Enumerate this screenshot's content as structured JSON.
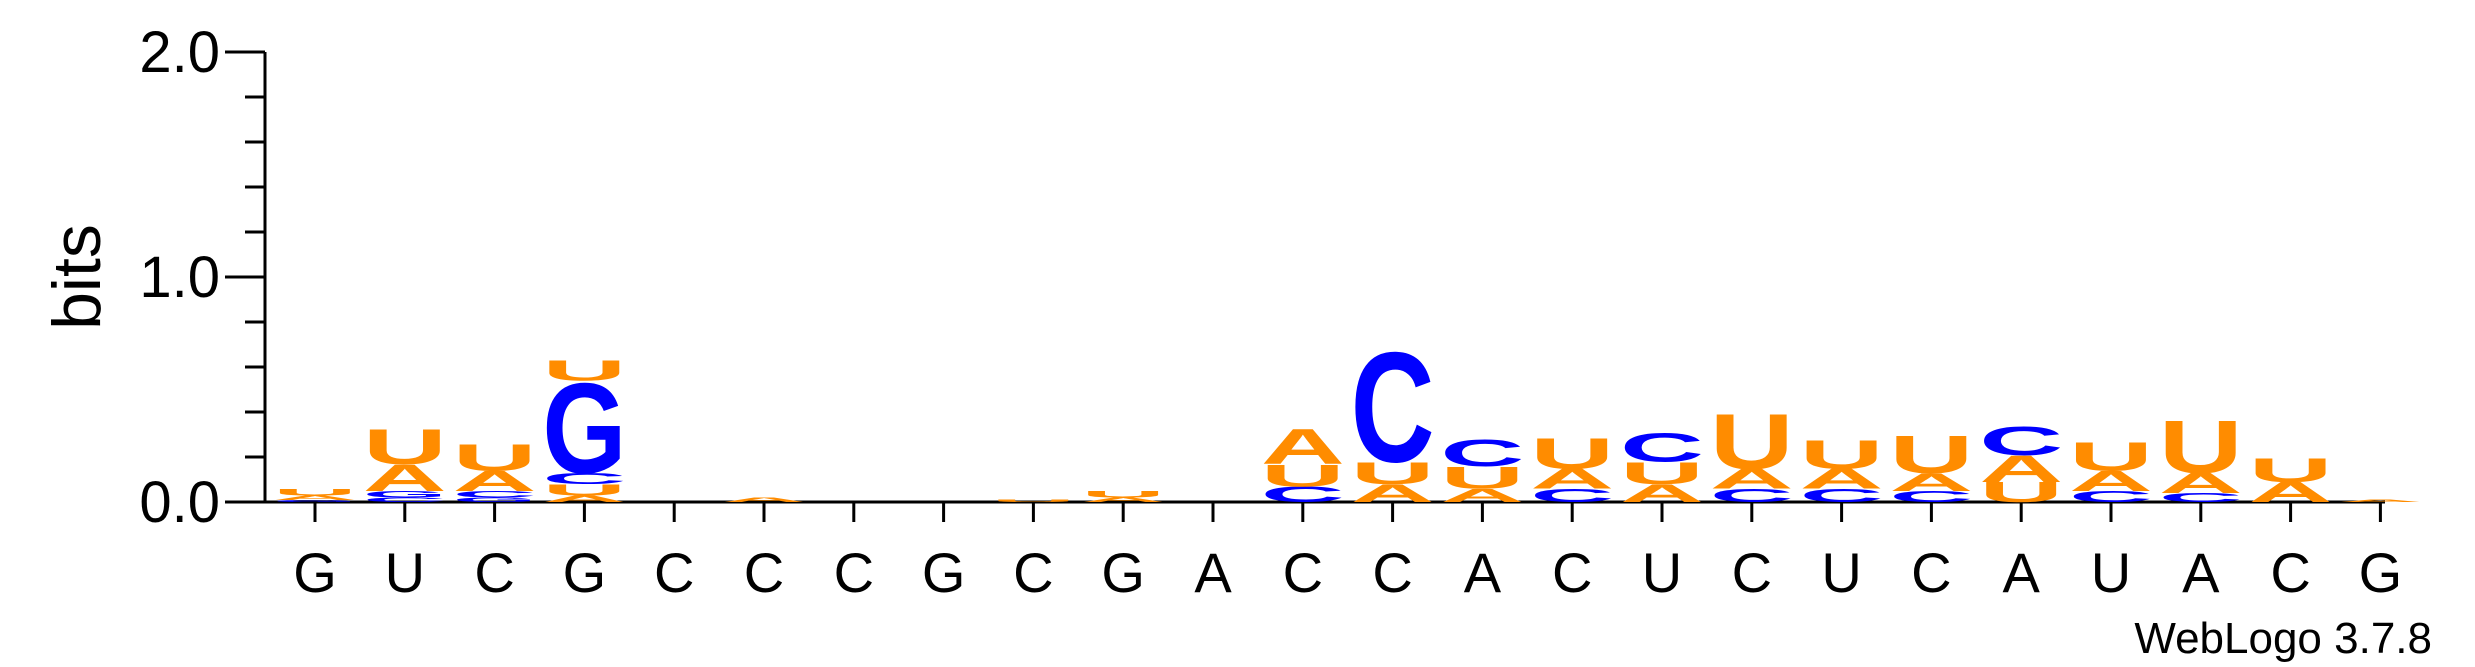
{
  "chart_data": {
    "type": "sequence-logo",
    "ylabel": "bits",
    "ylim": [
      0,
      2.0
    ],
    "yticks": [
      "0.0",
      "1.0",
      "2.0"
    ],
    "xticks": [
      "G",
      "U",
      "C",
      "G",
      "C",
      "C",
      "C",
      "G",
      "C",
      "G",
      "A",
      "C",
      "C",
      "A",
      "C",
      "U",
      "C",
      "U",
      "C",
      "A",
      "U",
      "A",
      "C",
      "G"
    ],
    "colors": {
      "A": "#ff8c00",
      "U": "#ff8c00",
      "C": "#0000ff",
      "G": "#0000ff"
    },
    "footnote": "WebLogo 3.7.8",
    "stacks": [
      [
        [
          "G",
          0.01
        ],
        [
          "A",
          0.02
        ],
        [
          "U",
          0.03
        ]
      ],
      [
        [
          "C",
          0.02
        ],
        [
          "G",
          0.03
        ],
        [
          "A",
          0.12
        ],
        [
          "U",
          0.16
        ]
      ],
      [
        [
          "G",
          0.02
        ],
        [
          "C",
          0.03
        ],
        [
          "A",
          0.09
        ],
        [
          "U",
          0.12
        ]
      ],
      [
        [
          "A",
          0.03
        ],
        [
          "U",
          0.05
        ],
        [
          "C",
          0.05
        ],
        [
          "G",
          0.41
        ],
        [
          "U",
          0.09
        ]
      ],
      [],
      [
        [
          "A",
          0.02
        ]
      ],
      [],
      [],
      [
        [
          "U",
          0.01
        ]
      ],
      [
        [
          "A",
          0.02
        ],
        [
          "U",
          0.03
        ]
      ],
      [],
      [
        [
          "C",
          0.07
        ],
        [
          "U",
          0.1
        ],
        [
          "A",
          0.16
        ]
      ],
      [
        [
          "A",
          0.08
        ],
        [
          "U",
          0.1
        ],
        [
          "C",
          0.5
        ]
      ],
      [
        [
          "A",
          0.06
        ],
        [
          "U",
          0.1
        ],
        [
          "C",
          0.12
        ]
      ],
      [
        [
          "C",
          0.06
        ],
        [
          "A",
          0.09
        ],
        [
          "U",
          0.14
        ]
      ],
      [
        [
          "A",
          0.08
        ],
        [
          "U",
          0.1
        ],
        [
          "C",
          0.13
        ]
      ],
      [
        [
          "C",
          0.06
        ],
        [
          "A",
          0.09
        ],
        [
          "U",
          0.25
        ]
      ],
      [
        [
          "C",
          0.06
        ],
        [
          "A",
          0.09
        ],
        [
          "U",
          0.13
        ]
      ],
      [
        [
          "C",
          0.05
        ],
        [
          "A",
          0.08
        ],
        [
          "U",
          0.17
        ]
      ],
      [
        [
          "U",
          0.09
        ],
        [
          "A",
          0.12
        ],
        [
          "C",
          0.13
        ]
      ],
      [
        [
          "C",
          0.05
        ],
        [
          "A",
          0.09
        ],
        [
          "U",
          0.13
        ]
      ],
      [
        [
          "C",
          0.04
        ],
        [
          "A",
          0.09
        ],
        [
          "U",
          0.24
        ]
      ],
      [
        [
          "A",
          0.09
        ],
        [
          "U",
          0.11
        ]
      ],
      [
        [
          "A",
          0.01
        ]
      ]
    ]
  }
}
